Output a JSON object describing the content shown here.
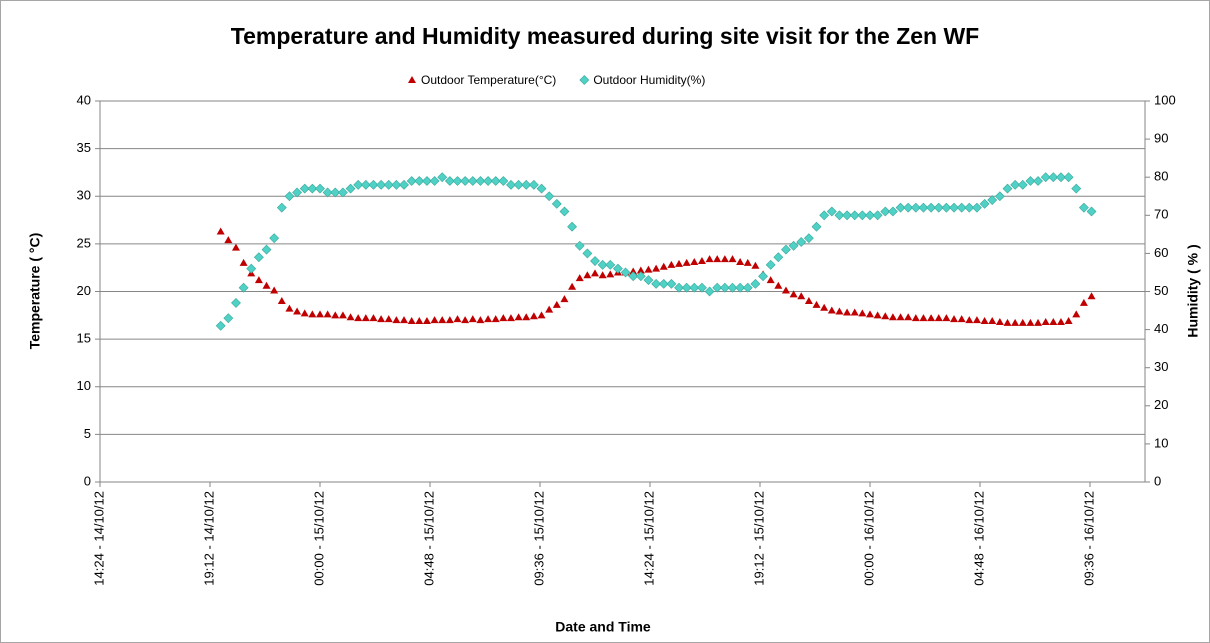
{
  "chart_data": {
    "type": "scatter",
    "title": "Temperature and Humidity measured during site visit for the Zen WF",
    "xlabel": "Date and Time",
    "ylabel": "Temperature ( °C)",
    "y2label": "Humidity ( % )",
    "legend": "top",
    "grid": true,
    "xlim": [
      "14:24 - 14/10/12",
      "12:00 - 16/10/12"
    ],
    "xticks": [
      "14:24 - 14/10/12",
      "19:12 - 14/10/12",
      "00:00 - 15/10/12",
      "04:48 - 15/10/12",
      "09:36 - 15/10/12",
      "14:24 - 15/10/12",
      "19:12 - 15/10/12",
      "00:00 - 16/10/12",
      "04:48 - 16/10/12",
      "09:36 - 16/10/12"
    ],
    "ylim": [
      0,
      40
    ],
    "yticks": [
      0,
      5,
      10,
      15,
      20,
      25,
      30,
      35,
      40
    ],
    "y2lim": [
      0,
      100
    ],
    "y2ticks": [
      0,
      10,
      20,
      30,
      40,
      50,
      60,
      70,
      80,
      90,
      100
    ],
    "x": [
      "19:40 - 14/10/12",
      "20:00 - 14/10/12",
      "20:20 - 14/10/12",
      "20:40 - 14/10/12",
      "21:00 - 14/10/12",
      "21:20 - 14/10/12",
      "21:40 - 14/10/12",
      "22:00 - 14/10/12",
      "22:20 - 14/10/12",
      "22:40 - 14/10/12",
      "23:00 - 14/10/12",
      "23:20 - 14/10/12",
      "23:40 - 14/10/12",
      "00:00 - 15/10/12",
      "00:20 - 15/10/12",
      "00:40 - 15/10/12",
      "01:00 - 15/10/12",
      "01:20 - 15/10/12",
      "01:40 - 15/10/12",
      "02:00 - 15/10/12",
      "02:20 - 15/10/12",
      "02:40 - 15/10/12",
      "03:00 - 15/10/12",
      "03:20 - 15/10/12",
      "03:40 - 15/10/12",
      "04:00 - 15/10/12",
      "04:20 - 15/10/12",
      "04:40 - 15/10/12",
      "05:00 - 15/10/12",
      "05:20 - 15/10/12",
      "05:40 - 15/10/12",
      "06:00 - 15/10/12",
      "06:20 - 15/10/12",
      "06:40 - 15/10/12",
      "07:00 - 15/10/12",
      "07:20 - 15/10/12",
      "07:40 - 15/10/12",
      "08:00 - 15/10/12",
      "08:20 - 15/10/12",
      "08:40 - 15/10/12",
      "09:00 - 15/10/12",
      "09:20 - 15/10/12",
      "09:40 - 15/10/12",
      "10:00 - 15/10/12",
      "10:20 - 15/10/12",
      "10:40 - 15/10/12",
      "11:00 - 15/10/12",
      "11:20 - 15/10/12",
      "11:40 - 15/10/12",
      "12:00 - 15/10/12",
      "12:20 - 15/10/12",
      "12:40 - 15/10/12",
      "13:00 - 15/10/12",
      "13:20 - 15/10/12",
      "13:40 - 15/10/12",
      "14:00 - 15/10/12",
      "14:20 - 15/10/12",
      "14:40 - 15/10/12",
      "15:00 - 15/10/12",
      "15:20 - 15/10/12",
      "15:40 - 15/10/12",
      "16:00 - 15/10/12",
      "16:20 - 15/10/12",
      "16:40 - 15/10/12",
      "17:00 - 15/10/12",
      "17:20 - 15/10/12",
      "17:40 - 15/10/12",
      "18:00 - 15/10/12",
      "18:20 - 15/10/12",
      "18:40 - 15/10/12",
      "19:00 - 15/10/12",
      "19:20 - 15/10/12",
      "19:40 - 15/10/12",
      "20:00 - 15/10/12",
      "20:20 - 15/10/12",
      "20:40 - 15/10/12",
      "21:00 - 15/10/12",
      "21:20 - 15/10/12",
      "21:40 - 15/10/12",
      "22:00 - 15/10/12",
      "22:20 - 15/10/12",
      "22:40 - 15/10/12",
      "23:00 - 15/10/12",
      "23:20 - 15/10/12",
      "23:40 - 15/10/12",
      "00:00 - 16/10/12",
      "00:20 - 16/10/12",
      "00:40 - 16/10/12",
      "01:00 - 16/10/12",
      "01:20 - 16/10/12",
      "01:40 - 16/10/12",
      "02:00 - 16/10/12",
      "02:20 - 16/10/12",
      "02:40 - 16/10/12",
      "03:00 - 16/10/12",
      "03:20 - 16/10/12",
      "03:40 - 16/10/12",
      "04:00 - 16/10/12",
      "04:20 - 16/10/12",
      "04:40 - 16/10/12",
      "05:00 - 16/10/12",
      "05:20 - 16/10/12",
      "05:40 - 16/10/12",
      "06:00 - 16/10/12",
      "06:20 - 16/10/12",
      "06:40 - 16/10/12",
      "07:00 - 16/10/12",
      "07:20 - 16/10/12",
      "07:40 - 16/10/12",
      "08:00 - 16/10/12",
      "08:20 - 16/10/12",
      "08:40 - 16/10/12",
      "09:00 - 16/10/12",
      "09:20 - 16/10/12",
      "09:40 - 16/10/12"
    ],
    "series": [
      {
        "name": "Outdoor Temperature(°C)",
        "color": "#c00000",
        "marker": "triangle",
        "values": [
          26.3,
          25.4,
          24.6,
          23.0,
          21.9,
          21.2,
          20.6,
          20.1,
          19.0,
          18.2,
          17.9,
          17.7,
          17.6,
          17.6,
          17.6,
          17.5,
          17.5,
          17.3,
          17.2,
          17.2,
          17.2,
          17.1,
          17.1,
          17.0,
          17.0,
          16.9,
          16.9,
          16.9,
          17.0,
          17.0,
          17.0,
          17.1,
          17.0,
          17.1,
          17.0,
          17.1,
          17.1,
          17.2,
          17.2,
          17.3,
          17.3,
          17.4,
          17.5,
          18.1,
          18.6,
          19.2,
          20.5,
          21.4,
          21.7,
          21.9,
          21.7,
          21.8,
          22.0,
          22.0,
          22.1,
          22.2,
          22.3,
          22.4,
          22.6,
          22.8,
          22.9,
          23.0,
          23.1,
          23.2,
          23.4,
          23.4,
          23.4,
          23.4,
          23.1,
          23.0,
          22.7,
          21.8,
          21.2,
          20.6,
          20.1,
          19.7,
          19.5,
          19.0,
          18.6,
          18.3,
          18.0,
          17.9,
          17.8,
          17.8,
          17.7,
          17.6,
          17.5,
          17.4,
          17.3,
          17.3,
          17.3,
          17.2,
          17.2,
          17.2,
          17.2,
          17.2,
          17.1,
          17.1,
          17.0,
          17.0,
          16.9,
          16.9,
          16.8,
          16.7,
          16.7,
          16.7,
          16.7,
          16.7,
          16.8,
          16.8,
          16.8,
          16.9,
          17.6,
          18.8,
          19.5
        ]
      },
      {
        "name": "Outdoor Humidity(%)",
        "color": "#4fd1c5",
        "marker": "diamond",
        "axis": "y2",
        "values": [
          41,
          43,
          47,
          51,
          56,
          59,
          61,
          64,
          72,
          75,
          76,
          77,
          77,
          77,
          76,
          76,
          76,
          77,
          78,
          78,
          78,
          78,
          78,
          78,
          78,
          79,
          79,
          79,
          79,
          80,
          79,
          79,
          79,
          79,
          79,
          79,
          79,
          79,
          78,
          78,
          78,
          78,
          77,
          75,
          73,
          71,
          67,
          62,
          60,
          58,
          57,
          57,
          56,
          55,
          54,
          54,
          53,
          52,
          52,
          52,
          51,
          51,
          51,
          51,
          50,
          51,
          51,
          51,
          51,
          51,
          52,
          54,
          57,
          59,
          61,
          62,
          63,
          64,
          67,
          70,
          71,
          70,
          70,
          70,
          70,
          70,
          70,
          71,
          71,
          72,
          72,
          72,
          72,
          72,
          72,
          72,
          72,
          72,
          72,
          72,
          73,
          74,
          75,
          77,
          78,
          78,
          79,
          79,
          80,
          80,
          80,
          80,
          77,
          72,
          71
        ]
      }
    ]
  }
}
